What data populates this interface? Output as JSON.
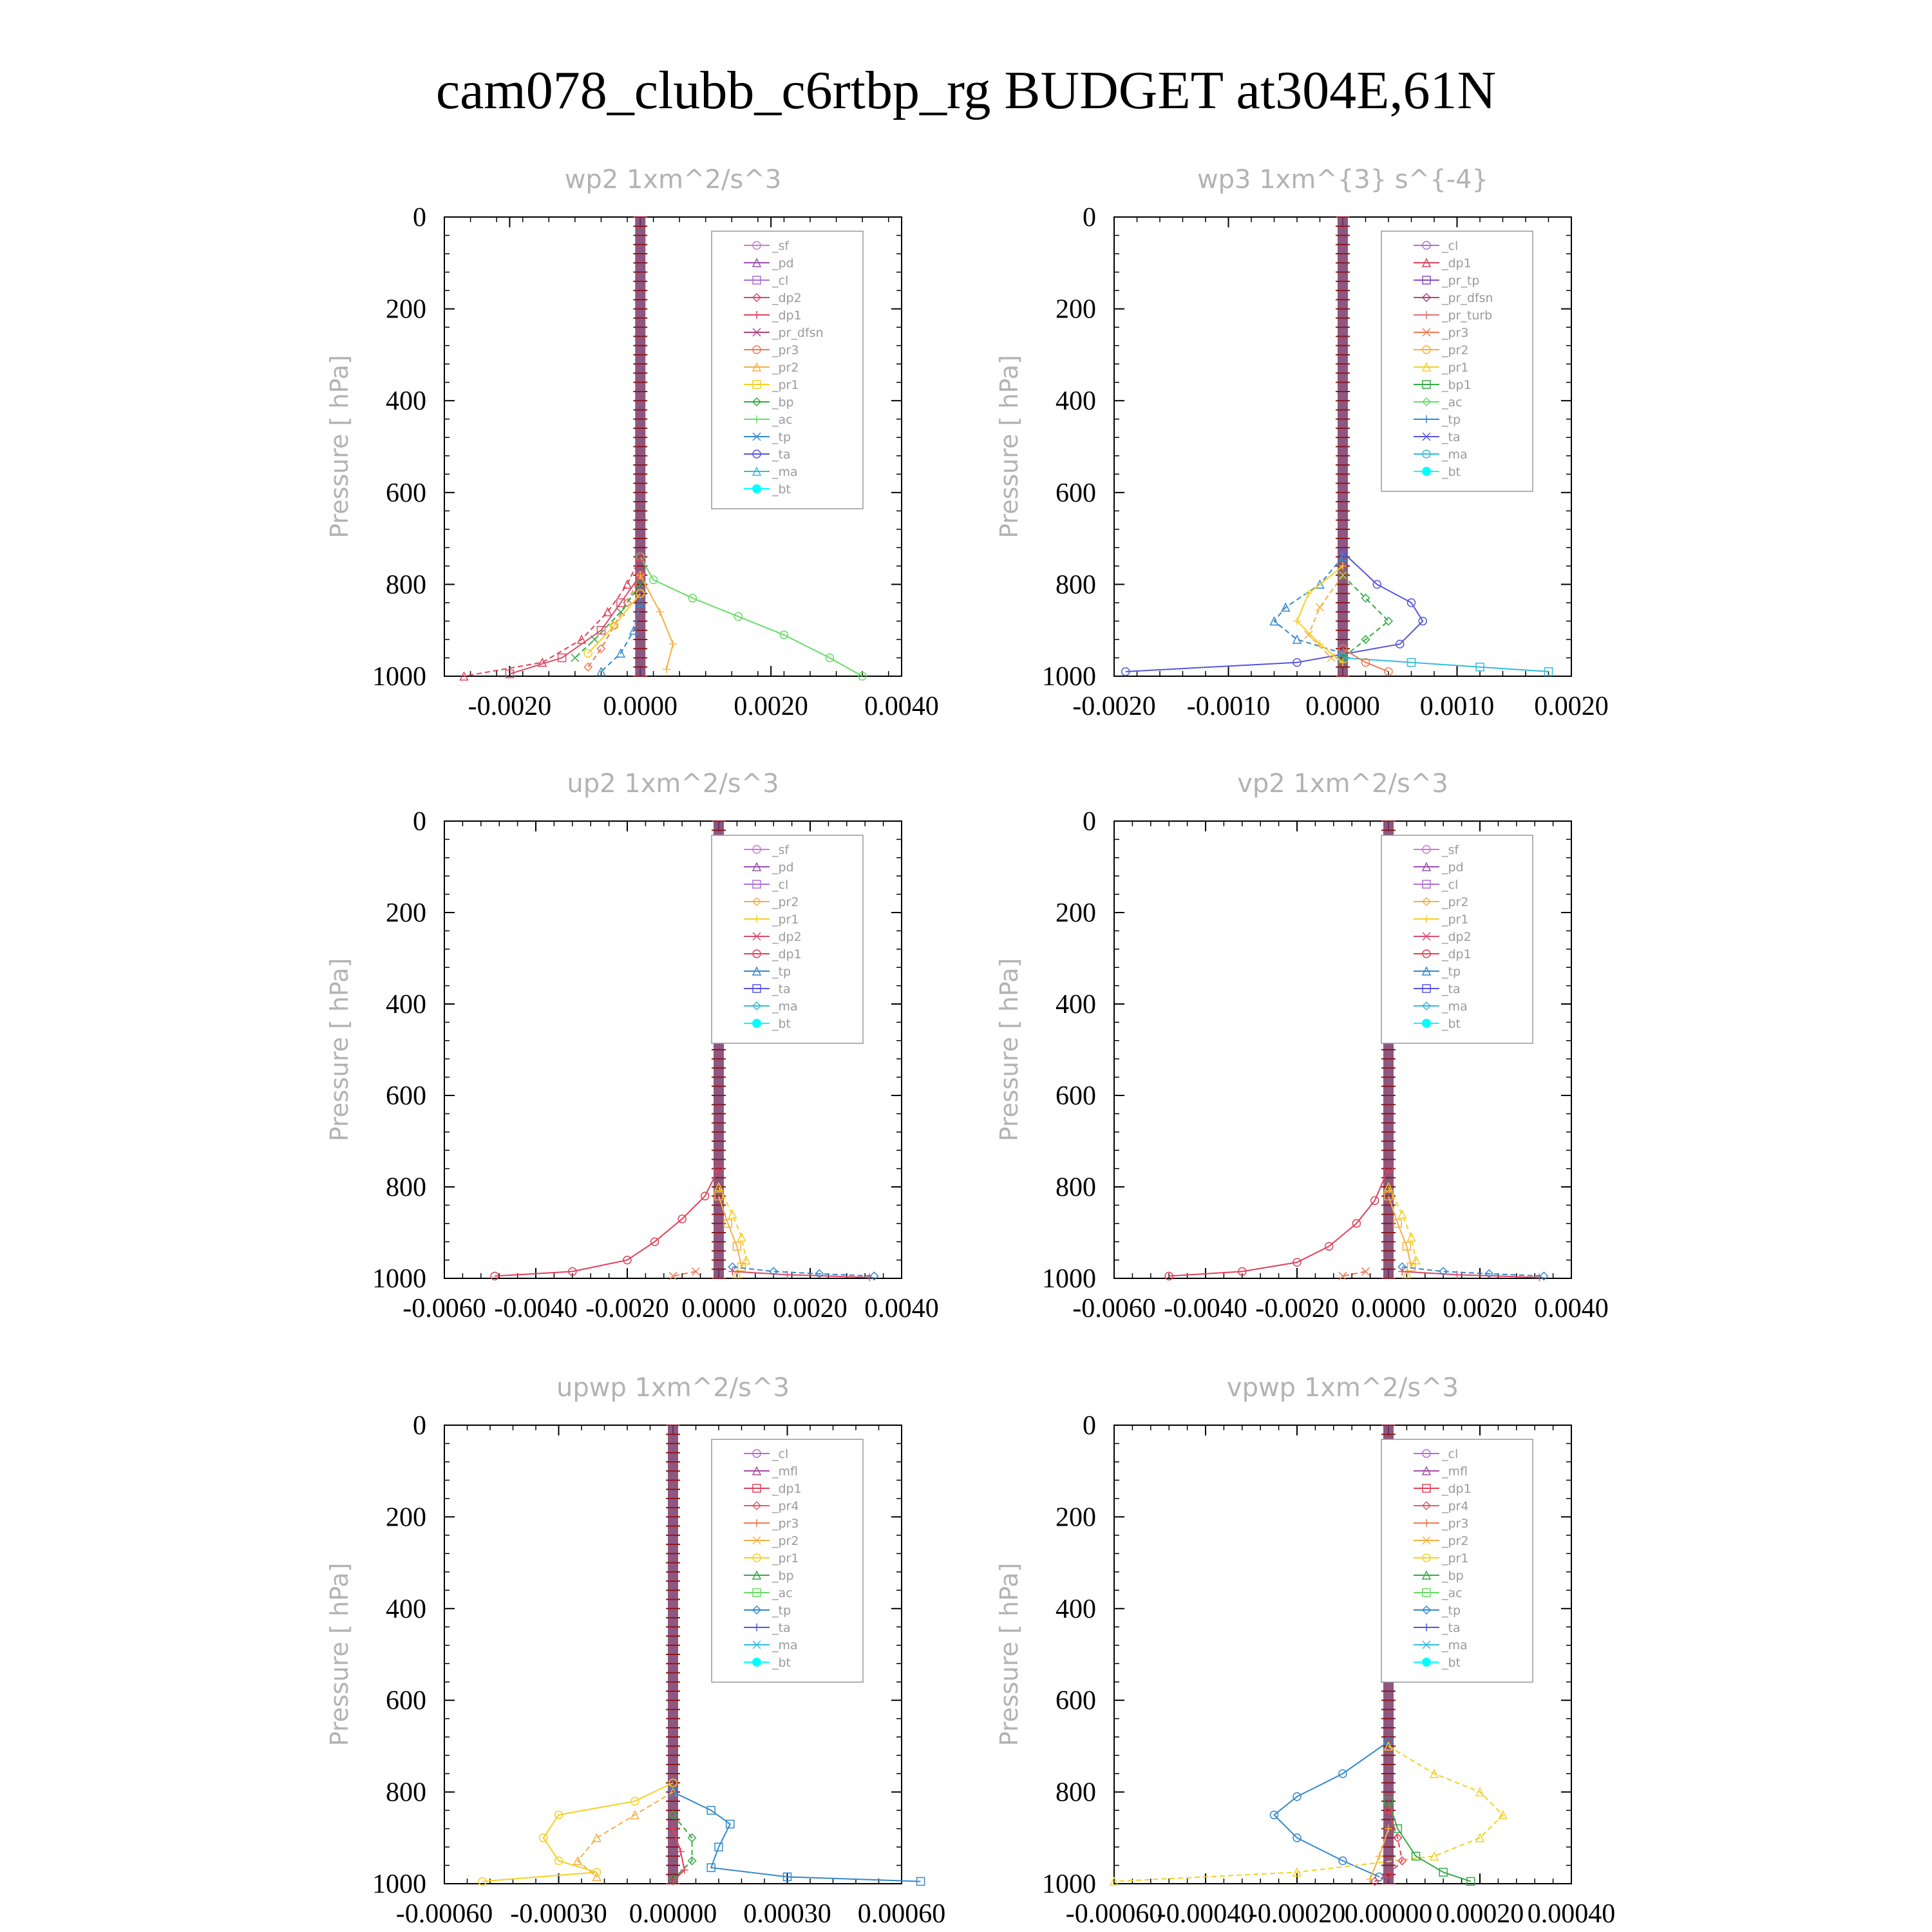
{
  "title": "cam078_clubb_c6rtbp_rg  BUDGET at304E,61N",
  "colors": {
    "_sf": "#cc7acc",
    "_pd": "#9b4fb0",
    "_cl": "#b06fd6",
    "_mfl": "#a64ca6",
    "_dp2": "#d94a6a",
    "_dp1": "#e0405a",
    "_pr_tp": "#8a4fc0",
    "_pr_dfsn": "#b04080",
    "_pr_turb": "#e07070",
    "_pr4": "#e05a70",
    "_pr3": "#f07850",
    "_pr2": "#f5b040",
    "_pr1": "#f5d020",
    "_bp1": "#33aa44",
    "_bp": "#33aa44",
    "_ac": "#66dd66",
    "_tp": "#3388cc",
    "_ta": "#5555dd",
    "_ma": "#33bbdd",
    "_bt": "#00ffff",
    "axis": "#000000",
    "light_text": "#b3b3b3",
    "center_line": "#8b1a1a"
  },
  "chart_data": [
    {
      "type": "line",
      "title": "wp2   1xm^2/s^3",
      "ylabel": "Pressure [ hPa]",
      "xlim": [
        -0.003,
        0.004
      ],
      "ylim": [
        1000,
        0
      ],
      "xticks": [
        "-0.0020",
        "0.0000",
        "0.0020",
        "0.0040"
      ],
      "xtick_values": [
        -0.002,
        0.0,
        0.002,
        0.004
      ],
      "yticks": [
        "0",
        "200",
        "400",
        "600",
        "800",
        "1000"
      ],
      "legend_position": "top-right",
      "legend": [
        "_sf",
        "_pd",
        "_cl",
        "_dp2",
        "_dp1",
        "_pr_dfsn",
        "_pr3",
        "_pr2",
        "_pr1",
        "_bp",
        "_ac",
        "_tp",
        "_ta",
        "_ma",
        "_bt"
      ],
      "series": [
        {
          "name": "_ac",
          "x": [
            0.0,
            0.0002,
            0.0008,
            0.0015,
            0.0022,
            0.0029,
            0.0034
          ],
          "y": [
            740,
            790,
            830,
            870,
            910,
            960,
            1000
          ]
        },
        {
          "name": "_dp1",
          "x": [
            0.0,
            -0.0002,
            -0.0005,
            -0.0009,
            -0.0015,
            -0.0027
          ],
          "y": [
            740,
            800,
            860,
            920,
            970,
            1000
          ]
        },
        {
          "name": "_dp2",
          "x": [
            0.0,
            -0.0003,
            -0.0006,
            -0.0012,
            -0.002
          ],
          "y": [
            780,
            840,
            900,
            960,
            995
          ]
        },
        {
          "name": "_pr3",
          "x": [
            0.0,
            -0.0002,
            -0.0004,
            -0.0006,
            -0.0008
          ],
          "y": [
            780,
            840,
            890,
            940,
            980
          ]
        },
        {
          "name": "_pr2",
          "x": [
            0.0,
            0.0003,
            0.0005,
            0.0004
          ],
          "y": [
            780,
            860,
            930,
            985
          ]
        },
        {
          "name": "_bp",
          "x": [
            0.0,
            -0.0003,
            -0.0007,
            -0.001
          ],
          "y": [
            800,
            860,
            920,
            960
          ]
        },
        {
          "name": "_pr1",
          "x": [
            0.0,
            -0.0004,
            -0.0008
          ],
          "y": [
            820,
            890,
            950
          ]
        },
        {
          "name": "_tp",
          "x": [
            0.0,
            -0.0001,
            -0.0003,
            -0.0006
          ],
          "y": [
            840,
            900,
            950,
            990
          ]
        }
      ]
    },
    {
      "type": "line",
      "title": "wp3   1xm^{3} s^{-4}",
      "ylabel": "Pressure [ hPa]",
      "xlim": [
        -0.002,
        0.002
      ],
      "ylim": [
        1000,
        0
      ],
      "xticks": [
        "-0.0020",
        "-0.0010",
        "0.0000",
        "0.0010",
        "0.0020"
      ],
      "xtick_values": [
        -0.002,
        -0.001,
        0.0,
        0.001,
        0.002
      ],
      "yticks": [
        "0",
        "200",
        "400",
        "600",
        "800",
        "1000"
      ],
      "legend_position": "top-right",
      "legend": [
        "_cl",
        "_dp1",
        "_pr_tp",
        "_pr_dfsn",
        "_pr_turb",
        "_pr3",
        "_pr2",
        "_pr1",
        "_bp1",
        "_ac",
        "_tp",
        "_ta",
        "_ma",
        "_bt"
      ],
      "series": [
        {
          "name": "_ta",
          "x": [
            0.0,
            0.0003,
            0.0006,
            0.0007,
            0.0005,
            -0.0004,
            -0.0019
          ],
          "y": [
            730,
            800,
            840,
            880,
            930,
            970,
            990
          ]
        },
        {
          "name": "_tp",
          "x": [
            0.0,
            -0.0002,
            -0.0005,
            -0.0006,
            -0.0004,
            0.0
          ],
          "y": [
            740,
            800,
            850,
            880,
            920,
            950
          ]
        },
        {
          "name": "_ma",
          "x": [
            0.0,
            0.0006,
            0.0012,
            0.0018
          ],
          "y": [
            960,
            970,
            980,
            990
          ]
        },
        {
          "name": "_bp1",
          "x": [
            0.0,
            0.0002,
            0.0004,
            0.0002,
            0.0
          ],
          "y": [
            780,
            830,
            880,
            920,
            960
          ]
        },
        {
          "name": "_pr1",
          "x": [
            0.0,
            -0.0003,
            -0.0004,
            -0.0002,
            0.0
          ],
          "y": [
            760,
            820,
            880,
            930,
            970
          ]
        },
        {
          "name": "_pr2",
          "x": [
            0.0,
            -0.0002,
            -0.0003,
            -0.0001
          ],
          "y": [
            780,
            850,
            910,
            960
          ]
        },
        {
          "name": "_pr3",
          "x": [
            0.0,
            0.0002,
            0.0004
          ],
          "y": [
            940,
            970,
            990
          ]
        }
      ]
    },
    {
      "type": "line",
      "title": "up2   1xm^2/s^3",
      "ylabel": "Pressure [ hPa]",
      "xlim": [
        -0.006,
        0.004
      ],
      "ylim": [
        1000,
        0
      ],
      "xticks": [
        "-0.0060",
        "-0.0040",
        "-0.0020",
        "0.0000",
        "0.0020",
        "0.0040"
      ],
      "xtick_values": [
        -0.006,
        -0.004,
        -0.002,
        0.0,
        0.002,
        0.004
      ],
      "yticks": [
        "0",
        "200",
        "400",
        "600",
        "800",
        "1000"
      ],
      "legend_position": "top-right",
      "legend": [
        "_sf",
        "_pd",
        "_cl",
        "_pr2",
        "_pr1",
        "_dp2",
        "_dp1",
        "_tp",
        "_ta",
        "_ma",
        "_bt"
      ],
      "series": [
        {
          "name": "_dp1",
          "x": [
            0.0,
            -0.0003,
            -0.0008,
            -0.0014,
            -0.002,
            -0.0032,
            -0.0049
          ],
          "y": [
            760,
            820,
            870,
            920,
            960,
            985,
            995
          ]
        },
        {
          "name": "_pr1",
          "x": [
            0.0,
            0.0003,
            0.0005,
            0.0006,
            0.0004
          ],
          "y": [
            800,
            860,
            910,
            960,
            990
          ]
        },
        {
          "name": "_pr2",
          "x": [
            0.0,
            0.0002,
            0.0004,
            0.0005
          ],
          "y": [
            820,
            880,
            930,
            975
          ]
        },
        {
          "name": "_tp",
          "x": [
            0.0003,
            0.0012,
            0.0022,
            0.0034
          ],
          "y": [
            975,
            985,
            990,
            995
          ]
        },
        {
          "name": "_dp2",
          "x": [
            0.0003,
            0.0015,
            0.0033
          ],
          "y": [
            985,
            992,
            998
          ]
        },
        {
          "name": "_pr3",
          "x": [
            -0.0005,
            -0.001
          ],
          "y": [
            985,
            995
          ]
        }
      ]
    },
    {
      "type": "line",
      "title": "vp2   1xm^2/s^3",
      "ylabel": "Pressure [ hPa]",
      "xlim": [
        -0.006,
        0.004
      ],
      "ylim": [
        1000,
        0
      ],
      "xticks": [
        "-0.0060",
        "-0.0040",
        "-0.0020",
        "0.0000",
        "0.0020",
        "0.0040"
      ],
      "xtick_values": [
        -0.006,
        -0.004,
        -0.002,
        0.0,
        0.002,
        0.004
      ],
      "yticks": [
        "0",
        "200",
        "400",
        "600",
        "800",
        "1000"
      ],
      "legend_position": "top-right",
      "legend": [
        "_sf",
        "_pd",
        "_cl",
        "_pr2",
        "_pr1",
        "_dp2",
        "_dp1",
        "_tp",
        "_ta",
        "_ma",
        "_bt"
      ],
      "series": [
        {
          "name": "_dp1",
          "x": [
            0.0,
            -0.0003,
            -0.0007,
            -0.0013,
            -0.002,
            -0.0032,
            -0.0048
          ],
          "y": [
            760,
            830,
            880,
            930,
            965,
            985,
            995
          ]
        },
        {
          "name": "_pr1",
          "x": [
            0.0,
            0.0003,
            0.0005,
            0.0006,
            0.0004
          ],
          "y": [
            800,
            860,
            910,
            960,
            990
          ]
        },
        {
          "name": "_pr2",
          "x": [
            0.0,
            0.0002,
            0.0004,
            0.0005
          ],
          "y": [
            820,
            880,
            930,
            975
          ]
        },
        {
          "name": "_tp",
          "x": [
            0.0003,
            0.0012,
            0.0022,
            0.0034
          ],
          "y": [
            975,
            985,
            990,
            995
          ]
        },
        {
          "name": "_dp2",
          "x": [
            0.0003,
            0.0015,
            0.0033
          ],
          "y": [
            985,
            992,
            998
          ]
        },
        {
          "name": "_pr3",
          "x": [
            -0.0005,
            -0.001
          ],
          "y": [
            985,
            995
          ]
        }
      ]
    },
    {
      "type": "line",
      "title": "upwp   1xm^2/s^3",
      "ylabel": "Pressure [ hPa]",
      "xlim": [
        -0.0006,
        0.0006
      ],
      "ylim": [
        1000,
        0
      ],
      "xticks": [
        "-0.00060",
        "-0.00030",
        "0.00000",
        "0.00030",
        "0.00060"
      ],
      "xtick_values": [
        -0.0006,
        -0.0003,
        0.0,
        0.0003,
        0.0006
      ],
      "yticks": [
        "0",
        "200",
        "400",
        "600",
        "800",
        "1000"
      ],
      "legend_position": "top-right",
      "legend": [
        "_cl",
        "_mfl",
        "_dp1",
        "_pr4",
        "_pr3",
        "_pr2",
        "_pr1",
        "_bp",
        "_ac",
        "_tp",
        "_ta",
        "_ma",
        "_bt"
      ],
      "series": [
        {
          "name": "_pr1",
          "x": [
            0.0,
            -0.0001,
            -0.0003,
            -0.00034,
            -0.0003,
            -0.0002,
            -0.0005
          ],
          "y": [
            780,
            820,
            850,
            900,
            950,
            975,
            995
          ]
        },
        {
          "name": "_pr2",
          "x": [
            0.0,
            -0.0001,
            -0.0002,
            -0.00025,
            -0.0002
          ],
          "y": [
            800,
            850,
            900,
            950,
            985
          ]
        },
        {
          "name": "_tp",
          "x": [
            0.0,
            0.0001,
            0.00015,
            0.00012,
            0.0001,
            0.0003,
            0.00065
          ],
          "y": [
            800,
            840,
            870,
            920,
            965,
            985,
            995
          ]
        },
        {
          "name": "_bp",
          "x": [
            0.0,
            5e-05,
            5e-05,
            0.0
          ],
          "y": [
            850,
            900,
            950,
            990
          ]
        },
        {
          "name": "_dp1",
          "x": [
            0.0,
            2e-05,
            3e-05,
            0.0
          ],
          "y": [
            880,
            930,
            970,
            995
          ]
        }
      ]
    },
    {
      "type": "line",
      "title": "vpwp   1xm^2/s^3",
      "ylabel": "Pressure [ hPa]",
      "xlim": [
        -0.0006,
        0.0004
      ],
      "ylim": [
        1000,
        0
      ],
      "xticks": [
        "-0.00060",
        "-0.00040",
        "-0.00020",
        "0.00000",
        "0.00020",
        "0.00040"
      ],
      "xtick_values": [
        -0.0006,
        -0.0004,
        -0.0002,
        0.0,
        0.0002,
        0.0004
      ],
      "yticks": [
        "0",
        "200",
        "400",
        "600",
        "800",
        "1000"
      ],
      "legend_position": "top-right",
      "legend": [
        "_cl",
        "_mfl",
        "_dp1",
        "_pr4",
        "_pr3",
        "_pr2",
        "_pr1",
        "_bp",
        "_ac",
        "_tp",
        "_ta",
        "_ma",
        "_bt"
      ],
      "series": [
        {
          "name": "_tp",
          "x": [
            0.0,
            -0.0001,
            -0.0002,
            -0.00025,
            -0.0002,
            -0.0001,
            -2e-05
          ],
          "y": [
            690,
            760,
            810,
            850,
            900,
            950,
            985
          ]
        },
        {
          "name": "_pr1",
          "x": [
            0.0,
            0.0001,
            0.0002,
            0.00025,
            0.0002,
            0.0001,
            -0.0002,
            -0.0006
          ],
          "y": [
            700,
            760,
            800,
            850,
            900,
            940,
            975,
            995
          ]
        },
        {
          "name": "_bp",
          "x": [
            0.0,
            2e-05,
            6e-05,
            0.00012,
            0.00018
          ],
          "y": [
            820,
            880,
            940,
            975,
            995
          ]
        },
        {
          "name": "_dp1",
          "x": [
            0.0,
            2e-05,
            3e-05,
            0.0,
            -3e-05
          ],
          "y": [
            840,
            900,
            950,
            980,
            995
          ]
        },
        {
          "name": "_pr2",
          "x": [
            0.0,
            -2e-05,
            -4e-05
          ],
          "y": [
            880,
            940,
            990
          ]
        }
      ]
    }
  ]
}
